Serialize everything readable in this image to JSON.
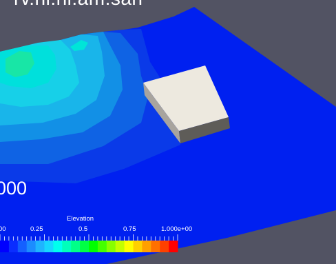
{
  "view": {
    "title_text": "rv.ni.ni.am.san",
    "time_text": "000"
  },
  "legend": {
    "title": "Elevation",
    "tick_labels": [
      "00",
      "0.25",
      "0.5",
      "0.75",
      "1.000e+00"
    ],
    "colors": [
      "#0000ff",
      "#0a2dff",
      "#1460ff",
      "#1c8cff",
      "#1fb4ff",
      "#17d6ff",
      "#00ffee",
      "#00ffbb",
      "#00ff88",
      "#00ff44",
      "#00ff00",
      "#44ff00",
      "#88ff00",
      "#c4ff00",
      "#ffff00",
      "#ffd000",
      "#ffa000",
      "#ff7000",
      "#ff4000",
      "#ff0000"
    ]
  },
  "colors": {
    "background": "#525363",
    "base_water": "#0020f0",
    "obstacle_top": "#ede9df",
    "obstacle_side": "#a8a49e",
    "obstacle_front": "#5e5c58"
  }
}
